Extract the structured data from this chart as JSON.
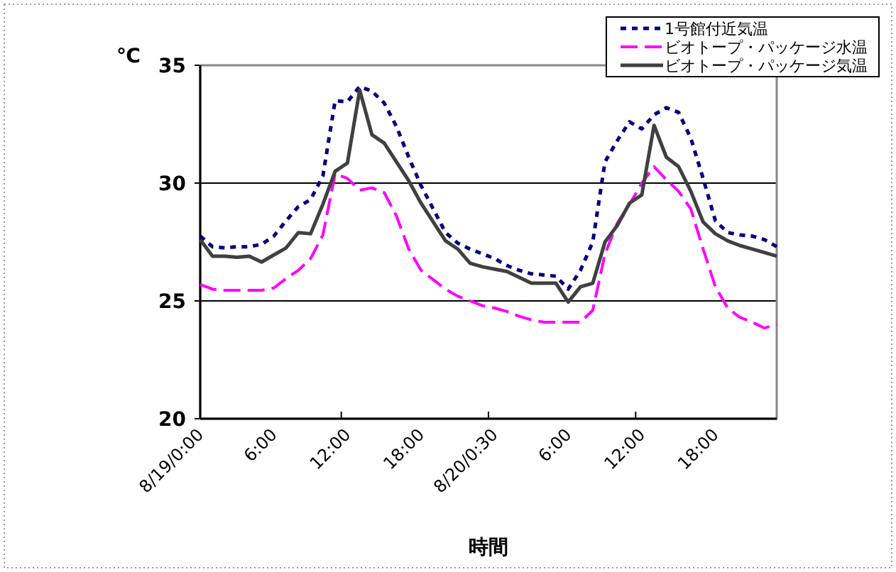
{
  "chart_data": {
    "type": "line",
    "xlabel": "時間",
    "ylabel": "℃",
    "categories": [
      "8/19/0:00",
      null,
      null,
      null,
      null,
      null,
      "6:00",
      null,
      null,
      null,
      null,
      null,
      "12:00",
      null,
      null,
      null,
      null,
      null,
      "18:00",
      null,
      null,
      null,
      null,
      null,
      "8/20/0:30",
      null,
      null,
      null,
      null,
      null,
      "6:00",
      null,
      null,
      null,
      null,
      null,
      "12:00",
      null,
      null,
      null,
      null,
      null,
      "18:00",
      null,
      null,
      null,
      null,
      null
    ],
    "series": [
      {
        "name": "1号館付近気温",
        "color": "#000080",
        "line_style": "dotted",
        "values": [
          27.75,
          27.3,
          27.25,
          27.3,
          27.3,
          27.4,
          27.75,
          28.4,
          29.0,
          29.3,
          30.3,
          33.5,
          33.45,
          34.1,
          33.9,
          33.4,
          32.4,
          31.1,
          29.9,
          28.9,
          27.9,
          27.45,
          27.2,
          27.0,
          26.8,
          26.5,
          26.3,
          26.15,
          26.1,
          26.05,
          25.5,
          26.3,
          27.5,
          30.9,
          31.8,
          32.6,
          32.3,
          32.9,
          33.2,
          33.0,
          31.9,
          30.2,
          28.4,
          27.9,
          27.8,
          27.75,
          27.6,
          27.3
        ]
      },
      {
        "name": "ビオトープ・パッケージ水温",
        "color": "#ff00ff",
        "line_style": "dashed",
        "values": [
          25.7,
          25.5,
          25.45,
          25.45,
          25.45,
          25.45,
          25.55,
          25.95,
          26.3,
          26.8,
          27.8,
          30.4,
          30.2,
          29.7,
          29.8,
          29.6,
          28.6,
          27.2,
          26.3,
          25.9,
          25.5,
          25.2,
          25.0,
          24.8,
          24.7,
          24.55,
          24.35,
          24.2,
          24.1,
          24.1,
          24.1,
          24.1,
          24.6,
          27.0,
          28.3,
          29.1,
          30.0,
          30.7,
          30.15,
          29.65,
          28.9,
          27.2,
          25.6,
          24.7,
          24.3,
          24.1,
          23.85,
          24.0
        ]
      },
      {
        "name": "ビオトープ・パッケージ気温",
        "color": "#404040",
        "line_style": "solid",
        "values": [
          27.6,
          26.9,
          26.9,
          26.85,
          26.9,
          26.65,
          26.95,
          27.25,
          27.9,
          27.85,
          29.1,
          30.5,
          30.85,
          33.95,
          32.05,
          31.7,
          30.9,
          30.1,
          29.15,
          28.35,
          27.55,
          27.2,
          26.6,
          26.45,
          26.35,
          26.25,
          26.0,
          25.75,
          25.75,
          25.75,
          24.95,
          25.6,
          25.75,
          27.5,
          28.2,
          29.15,
          29.5,
          32.45,
          31.1,
          30.7,
          29.65,
          28.35,
          27.85,
          27.55,
          27.35,
          27.2,
          27.05,
          26.9
        ]
      }
    ],
    "ylim": [
      20,
      35
    ],
    "yticks": [
      20,
      25,
      30,
      35
    ],
    "grid": "y",
    "legend": "top right"
  }
}
